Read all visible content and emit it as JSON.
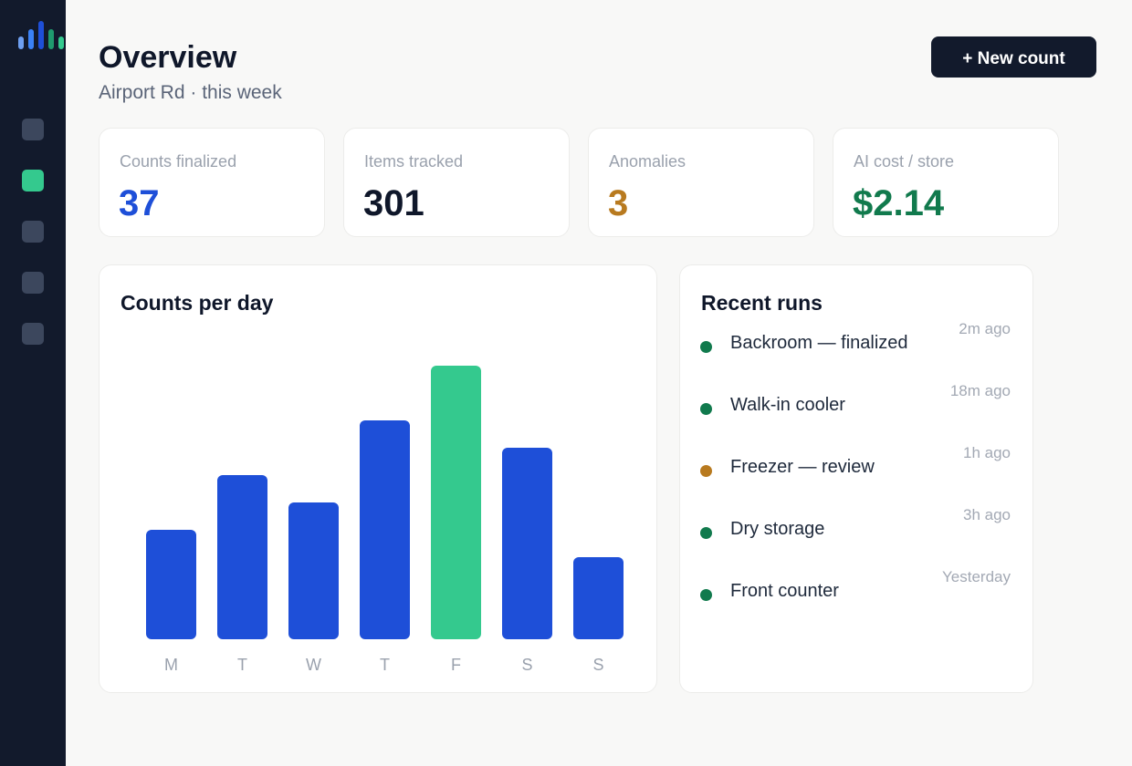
{
  "colors": {
    "sidebar_bg": "#121a2c",
    "accent_green": "#34c98e",
    "primary_blue": "#1e4fd8",
    "warning_amber": "#b87a1f",
    "success_green": "#117a4d"
  },
  "sidebar": {
    "logo_icon": "bar-chart-logo-icon",
    "items": [
      {
        "icon": "nav-square-icon",
        "active": false
      },
      {
        "icon": "nav-square-icon",
        "active": true
      },
      {
        "icon": "nav-square-icon",
        "active": false
      },
      {
        "icon": "nav-square-icon",
        "active": false
      },
      {
        "icon": "nav-square-icon",
        "active": false
      }
    ]
  },
  "header": {
    "title": "Overview",
    "subtitle": "Airport Rd · this week",
    "new_button_label": "+ New count"
  },
  "stats": [
    {
      "label": "Counts finalized",
      "value": "37",
      "color": "#1e4fd8"
    },
    {
      "label": "Items tracked",
      "value": "301",
      "color": "#0f172a"
    },
    {
      "label": "Anomalies",
      "value": "3",
      "color": "#b87a1f"
    },
    {
      "label": "AI cost / store",
      "value": "$2.14",
      "color": "#117a4d"
    }
  ],
  "counts_panel": {
    "title": "Counts per day"
  },
  "chart_data": {
    "type": "bar",
    "title": "Counts per day",
    "categories": [
      "M",
      "T",
      "W",
      "T",
      "F",
      "S",
      "S"
    ],
    "values": [
      4,
      6,
      5,
      8,
      10,
      7,
      3
    ],
    "highlight_index": 4,
    "colors": {
      "default": "#1e4fd8",
      "highlight": "#34c98e"
    },
    "grid": false,
    "ylim": [
      0,
      10
    ]
  },
  "runs_panel": {
    "title": "Recent runs",
    "items": [
      {
        "name": "Backroom — finalized",
        "time": "2m ago",
        "status_color": "#117a4d"
      },
      {
        "name": "Walk-in cooler",
        "time": "18m ago",
        "status_color": "#117a4d"
      },
      {
        "name": "Freezer — review",
        "time": "1h ago",
        "status_color": "#b87a1f"
      },
      {
        "name": "Dry storage",
        "time": "3h ago",
        "status_color": "#117a4d"
      },
      {
        "name": "Front counter",
        "time": "Yesterday",
        "status_color": "#117a4d"
      }
    ]
  }
}
